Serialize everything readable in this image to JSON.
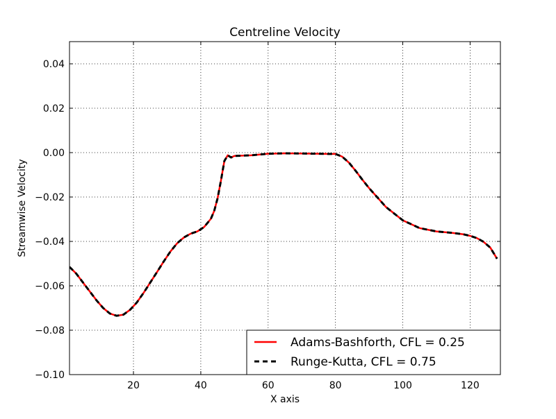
{
  "chart_data": {
    "type": "line",
    "title": "Centreline Velocity",
    "xlabel": "X axis",
    "ylabel": "Streamwise Velocity",
    "xlim": [
      1,
      129
    ],
    "ylim": [
      -0.1,
      0.05
    ],
    "xticks": [
      20,
      40,
      60,
      80,
      100,
      120
    ],
    "xtick_labels": [
      "20",
      "40",
      "60",
      "80",
      "100",
      "120"
    ],
    "yticks": [
      0.04,
      0.02,
      0.0,
      -0.02,
      -0.04,
      -0.06,
      -0.08,
      -0.1
    ],
    "ytick_labels": [
      "0.04",
      "0.02",
      "0.00",
      "−0.02",
      "−0.04",
      "−0.06",
      "−0.08",
      "−0.10"
    ],
    "grid": true,
    "legend_position": "bottom-right",
    "x": [
      1,
      3,
      5,
      7,
      9,
      11,
      13,
      15,
      17,
      19,
      21,
      23,
      25,
      27,
      29,
      31,
      33,
      35,
      37,
      39,
      41,
      43,
      44,
      45,
      46,
      47,
      48,
      49,
      50,
      55,
      60,
      65,
      70,
      75,
      78,
      80,
      82,
      84,
      86,
      88,
      90,
      95,
      100,
      105,
      110,
      115,
      118,
      120,
      122,
      124,
      126,
      128
    ],
    "series": [
      {
        "name": "Adams-Bashforth, CFL = 0.25",
        "color": "#ff0000",
        "style": "solid",
        "values": [
          -0.0515,
          -0.0545,
          -0.0585,
          -0.0625,
          -0.0665,
          -0.07,
          -0.0725,
          -0.0735,
          -0.073,
          -0.0708,
          -0.0675,
          -0.0632,
          -0.0585,
          -0.0538,
          -0.049,
          -0.0445,
          -0.0408,
          -0.0382,
          -0.0365,
          -0.0355,
          -0.0335,
          -0.0298,
          -0.0262,
          -0.0205,
          -0.0125,
          -0.0038,
          -0.0012,
          -0.0022,
          -0.0015,
          -0.0012,
          -0.0005,
          -0.0003,
          -0.0004,
          -0.0005,
          -0.0006,
          -0.0006,
          -0.0018,
          -0.0045,
          -0.0082,
          -0.0122,
          -0.016,
          -0.0245,
          -0.0305,
          -0.034,
          -0.0355,
          -0.0362,
          -0.0368,
          -0.0375,
          -0.0385,
          -0.0402,
          -0.0428,
          -0.0478
        ]
      },
      {
        "name": "Runge-Kutta, CFL = 0.75",
        "color": "#000000",
        "style": "dashed",
        "values": [
          -0.0515,
          -0.0545,
          -0.0585,
          -0.0625,
          -0.0665,
          -0.07,
          -0.0725,
          -0.0735,
          -0.073,
          -0.0708,
          -0.0675,
          -0.0632,
          -0.0585,
          -0.0538,
          -0.049,
          -0.0445,
          -0.0408,
          -0.0382,
          -0.0365,
          -0.0355,
          -0.0335,
          -0.0298,
          -0.0262,
          -0.0205,
          -0.0125,
          -0.0038,
          -0.0012,
          -0.0022,
          -0.0015,
          -0.0012,
          -0.0005,
          -0.0003,
          -0.0004,
          -0.0005,
          -0.0006,
          -0.0006,
          -0.0018,
          -0.0045,
          -0.0082,
          -0.0122,
          -0.016,
          -0.0245,
          -0.0305,
          -0.034,
          -0.0355,
          -0.0362,
          -0.0368,
          -0.0375,
          -0.0385,
          -0.0402,
          -0.0428,
          -0.0478
        ]
      }
    ]
  }
}
